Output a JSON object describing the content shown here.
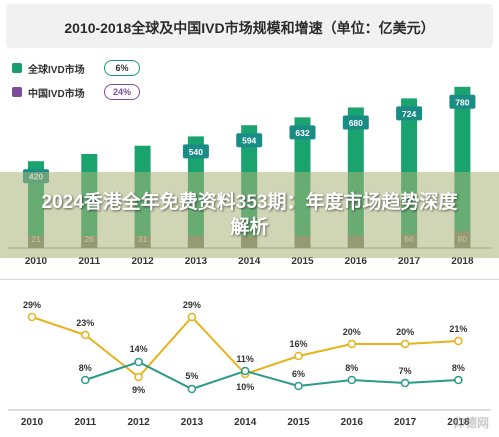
{
  "title": "2010-2018全球及中国IVD市场规模和增速（单位：亿美元）",
  "legend": {
    "global": {
      "label": "全球IVD市场",
      "rate": "6%",
      "color": "#1a9e70"
    },
    "china": {
      "label": "中国IVD市场",
      "rate": "24%",
      "color": "#7b4d9a"
    }
  },
  "banner": "2024香港全年免费资料353期：年度市场趋势深度解析",
  "watermark": "仰德网",
  "colors": {
    "bar_global": "#1aa36f",
    "bar_china": "#7a7a6a",
    "label_box": "#1a8c86",
    "line_global": "#2a9a8a",
    "line_china": "#e8b21c"
  },
  "chart_data": [
    {
      "type": "bar",
      "categories": [
        "2010",
        "2011",
        "2012",
        "2013",
        "2014",
        "2015",
        "2016",
        "2017",
        "2018"
      ],
      "series": [
        {
          "name": "全球IVD市场",
          "values": [
            420,
            455,
            495,
            540,
            594,
            632,
            680,
            724,
            780
          ]
        },
        {
          "name": "中国IVD市场",
          "values": [
            21,
            26,
            31,
            40,
            44,
            51,
            60,
            66,
            80
          ]
        }
      ],
      "value_labels": {
        "global": [
          "420",
          "",
          "",
          "540",
          "594",
          "632",
          "680",
          "724",
          "780"
        ],
        "china": [
          "21",
          "26",
          "31",
          "",
          "",
          "",
          "",
          "66",
          "80"
        ]
      },
      "ylim": [
        0,
        900
      ]
    },
    {
      "type": "line",
      "categories": [
        "2010",
        "2011",
        "2012",
        "2013",
        "2014",
        "2015",
        "2016",
        "2017",
        "2018"
      ],
      "series": [
        {
          "name": "中国IVD市场",
          "values": [
            29,
            23,
            9,
            29,
            10,
            16,
            20,
            20,
            21
          ],
          "labels": [
            "29%",
            "23%",
            "9%",
            "29%",
            "10%",
            "16%",
            "20%",
            "20%",
            "21%"
          ]
        },
        {
          "name": "全球IVD市场",
          "values": [
            null,
            8,
            14,
            5,
            11,
            6,
            8,
            7,
            8
          ],
          "labels": [
            "",
            "8%",
            "14%",
            "5%",
            "11%",
            "6%",
            "8%",
            "7%",
            "8%"
          ]
        }
      ],
      "ylim": [
        0,
        35
      ]
    }
  ]
}
